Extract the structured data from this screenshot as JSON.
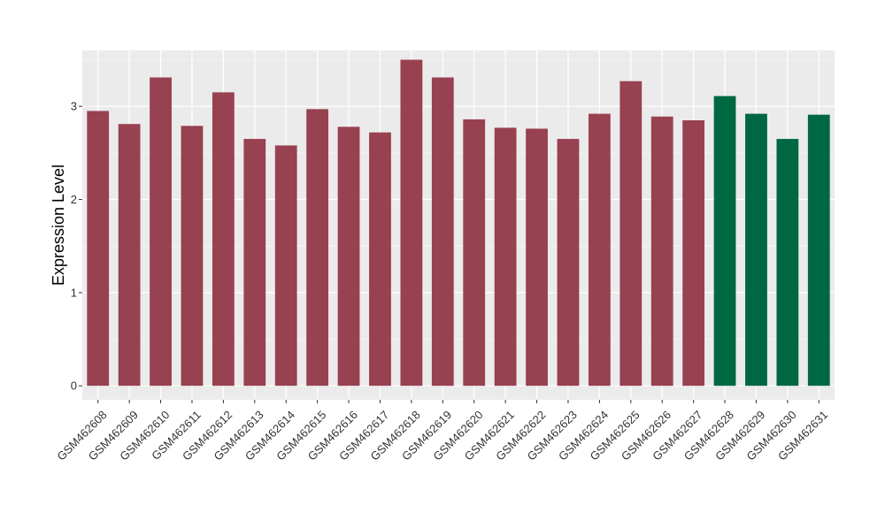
{
  "chart_data": {
    "type": "bar",
    "title": "",
    "xlabel": "",
    "ylabel": "Expression Level",
    "ylim": [
      -0.15,
      3.6
    ],
    "yticks": [
      0,
      1,
      2,
      3
    ],
    "grid": true,
    "categories": [
      "GSM462608",
      "GSM462609",
      "GSM462610",
      "GSM462611",
      "GSM462612",
      "GSM462613",
      "GSM462614",
      "GSM462615",
      "GSM462616",
      "GSM462617",
      "GSM462618",
      "GSM462619",
      "GSM462620",
      "GSM462621",
      "GSM462622",
      "GSM462623",
      "GSM462624",
      "GSM462625",
      "GSM462626",
      "GSM462627",
      "GSM462628",
      "GSM462629",
      "GSM462630",
      "GSM462631"
    ],
    "values": [
      2.95,
      2.81,
      3.31,
      2.79,
      3.15,
      2.65,
      2.58,
      2.97,
      2.78,
      2.72,
      3.5,
      3.31,
      2.86,
      2.77,
      2.76,
      2.65,
      2.92,
      3.27,
      2.89,
      2.85,
      3.11,
      2.92,
      2.65,
      2.91
    ],
    "groups": [
      "a",
      "a",
      "a",
      "a",
      "a",
      "a",
      "a",
      "a",
      "a",
      "a",
      "a",
      "a",
      "a",
      "a",
      "a",
      "a",
      "a",
      "a",
      "a",
      "a",
      "b",
      "b",
      "b",
      "b"
    ],
    "colors": {
      "a": "#984150",
      "b": "#006743",
      "panel": "#ebebeb",
      "grid_major": "#ffffff",
      "grid_minor": "#f5f5f5"
    }
  }
}
